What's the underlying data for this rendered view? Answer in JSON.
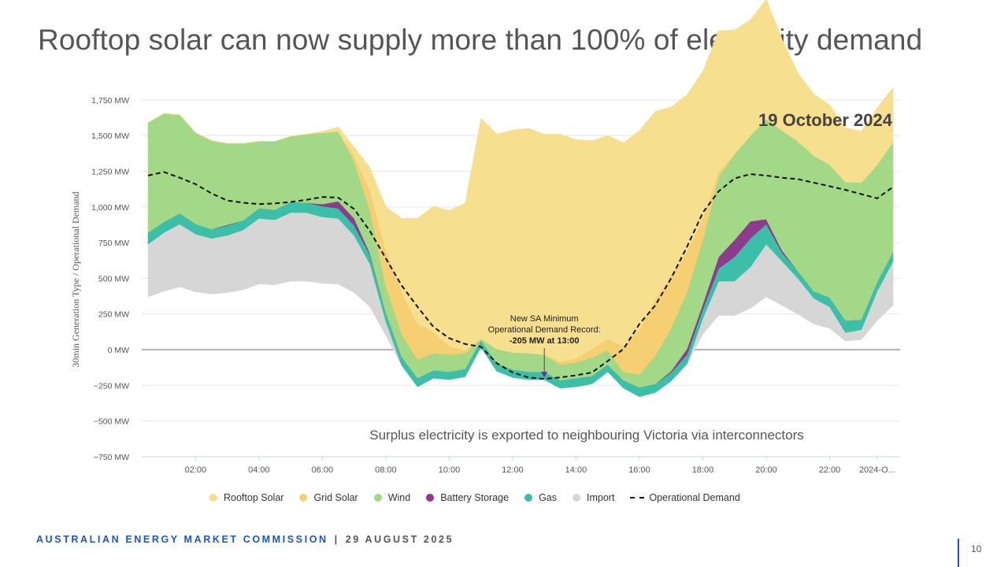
{
  "slide": {
    "title": "Rooftop solar can now supply more than 100% of electricity demand",
    "footer_org": "AUSTRALIAN ENERGY MARKET COMMISSION",
    "footer_sep": "|",
    "footer_date": "29 AUGUST 2025",
    "page_number": "10"
  },
  "chart_data": {
    "type": "area",
    "title": "19 October 2024",
    "ylabel": "30min Generation Type / Operational Demand",
    "xlabel": "",
    "ylim": [
      -750,
      1750
    ],
    "yticks": [
      -750,
      -500,
      -250,
      0,
      250,
      500,
      750,
      1000,
      1250,
      1500,
      1750
    ],
    "ytick_labels": [
      "−750 MW",
      "−500 MW",
      "−250 MW",
      "0 MW",
      "250 MW",
      "500 MW",
      "750 MW",
      "1,000 MW",
      "1,250 MW",
      "1,500 MW",
      "1,750 MW"
    ],
    "xticks": [
      2,
      4,
      6,
      8,
      10,
      12,
      14,
      16,
      18,
      20,
      22,
      23.5
    ],
    "xtick_labels": [
      "02:00",
      "04:00",
      "06:00",
      "08:00",
      "10:00",
      "12:00",
      "14:00",
      "16:00",
      "18:00",
      "20:00",
      "22:00",
      "2024-O..."
    ],
    "grid": true,
    "legend_position": "bottom",
    "x": [
      0.5,
      1.0,
      1.5,
      2.0,
      2.5,
      3.0,
      3.5,
      4.0,
      4.5,
      5.0,
      5.5,
      6.0,
      6.5,
      7.0,
      7.5,
      8.0,
      8.5,
      9.0,
      9.5,
      10.0,
      10.5,
      11.0,
      11.5,
      12.0,
      12.5,
      13.0,
      13.5,
      14.0,
      14.5,
      15.0,
      15.5,
      16.0,
      16.5,
      17.0,
      17.5,
      18.0,
      18.5,
      19.0,
      19.5,
      20.0,
      20.5,
      21.0,
      21.5,
      22.0,
      22.5,
      23.0,
      23.5,
      24.0
    ],
    "stack_bottom": [
      370,
      410,
      440,
      405,
      390,
      400,
      420,
      460,
      455,
      480,
      480,
      465,
      460,
      400,
      300,
      100,
      -110,
      -260,
      -200,
      -210,
      -190,
      10,
      -150,
      -195,
      -210,
      -210,
      -270,
      -260,
      -240,
      -155,
      -270,
      -330,
      -300,
      -220,
      -100,
      110,
      240,
      240,
      290,
      370,
      310,
      250,
      180,
      150,
      60,
      70,
      205,
      310
    ],
    "series": [
      {
        "name": "Import",
        "color": "#d6d6d6",
        "values": [
          370,
          410,
          440,
          405,
          390,
          400,
          420,
          460,
          455,
          480,
          480,
          465,
          460,
          400,
          300,
          100,
          0,
          0,
          0,
          0,
          0,
          10,
          0,
          0,
          0,
          0,
          0,
          0,
          0,
          0,
          0,
          0,
          0,
          0,
          0,
          110,
          240,
          240,
          290,
          370,
          310,
          250,
          180,
          150,
          60,
          70,
          205,
          310
        ]
      },
      {
        "name": "Gas",
        "color": "#3cbfa8",
        "values": [
          80,
          75,
          75,
          70,
          65,
          70,
          65,
          70,
          70,
          75,
          70,
          75,
          70,
          70,
          65,
          60,
          60,
          60,
          55,
          55,
          55,
          45,
          55,
          55,
          55,
          55,
          55,
          60,
          55,
          50,
          55,
          65,
          60,
          60,
          65,
          65,
          90,
          170,
          200,
          140,
          60,
          50,
          50,
          65,
          85,
          70,
          65,
          65
        ]
      },
      {
        "name": "Battery Storage",
        "color": "#8e3a8e",
        "values": [
          0,
          0,
          0,
          0,
          0,
          5,
          0,
          0,
          0,
          0,
          0,
          15,
          50,
          50,
          10,
          0,
          0,
          0,
          0,
          0,
          0,
          0,
          0,
          0,
          0,
          0,
          0,
          0,
          0,
          0,
          0,
          0,
          0,
          10,
          40,
          35,
          80,
          120,
          120,
          35,
          15,
          0,
          0,
          0,
          0,
          0,
          0,
          0
        ]
      },
      {
        "name": "Wind",
        "color": "#a2d886",
        "values": [
          770,
          760,
          690,
          640,
          620,
          570,
          540,
          470,
          480,
          460,
          480,
          500,
          490,
          400,
          300,
          190,
          160,
          130,
          120,
          120,
          110,
          10,
          100,
          120,
          130,
          120,
          110,
          110,
          130,
          100,
          60,
          90,
          200,
          300,
          400,
          450,
          560,
          600,
          600,
          700,
          840,
          910,
          950,
          930,
          970,
          960,
          820,
          770
        ]
      },
      {
        "name": "Grid Solar",
        "color": "#f7cf73",
        "values": [
          0,
          0,
          0,
          0,
          0,
          0,
          0,
          0,
          0,
          0,
          0,
          0,
          0,
          40,
          140,
          250,
          300,
          250,
          150,
          60,
          20,
          0,
          0,
          0,
          0,
          0,
          20,
          30,
          60,
          80,
          180,
          320,
          390,
          370,
          280,
          150,
          35,
          0,
          0,
          0,
          0,
          0,
          0,
          0,
          0,
          0,
          0,
          0
        ]
      },
      {
        "name": "Rooftop Solar",
        "color": "#f6df8e",
        "values": [
          0,
          0,
          0,
          0,
          0,
          0,
          0,
          0,
          0,
          0,
          0,
          10,
          30,
          60,
          160,
          300,
          510,
          740,
          880,
          950,
          1030,
          1545,
          1505,
          1560,
          1575,
          1545,
          1595,
          1530,
          1460,
          1425,
          1425,
          1390,
          1320,
          1180,
          1100,
          1030,
          990,
          870,
          810,
          840,
          640,
          480,
          430,
          420,
          380,
          360,
          400,
          380
        ]
      },
      {
        "name": "Operational Demand",
        "color": "#111111",
        "dashed": true,
        "values": [
          1220,
          1245,
          1205,
          1160,
          1095,
          1045,
          1030,
          1020,
          1025,
          1035,
          1050,
          1070,
          1065,
          985,
          830,
          640,
          450,
          300,
          160,
          80,
          40,
          20,
          -95,
          -160,
          -195,
          -205,
          -195,
          -180,
          -160,
          -80,
          5,
          180,
          310,
          500,
          720,
          960,
          1110,
          1200,
          1230,
          1220,
          1205,
          1195,
          1170,
          1145,
          1120,
          1090,
          1060,
          1140
        ]
      }
    ],
    "annotations": [
      {
        "lines": [
          "New SA Minimum",
          "Operational Demand Record:",
          "-205 MW at 13:00"
        ],
        "x": 13.0,
        "y": -205
      },
      {
        "text": "Surplus electricity is exported to neighbouring Victoria via interconnectors"
      }
    ]
  }
}
